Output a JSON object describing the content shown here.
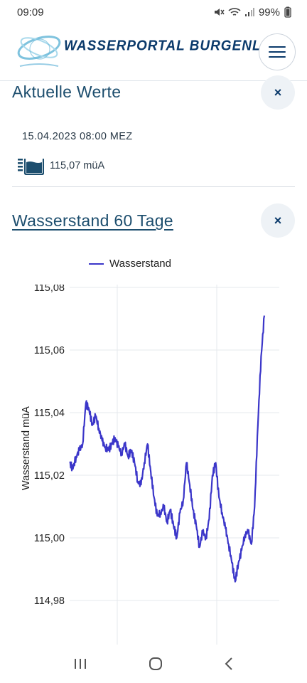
{
  "status_bar": {
    "time": "09:09",
    "battery": "99%"
  },
  "header": {
    "brand": "WASSERPORTAL BURGENLAND"
  },
  "current_values": {
    "title": "Aktuelle Werte",
    "close": "×",
    "timestamp": "15.04.2023 08:00 MEZ",
    "water_level": "115,07 müA"
  },
  "chart_section": {
    "title": "Wasserstand 60 Tage",
    "close": "×"
  },
  "chart_data": {
    "type": "line",
    "title": "",
    "xlabel": "",
    "ylabel": "Wasserstand müA",
    "ylim": [
      114.975,
      115.09
    ],
    "ytick_labels": [
      "115,08",
      "115,06",
      "115,04",
      "115,02",
      "115,00",
      "114,98"
    ],
    "yticks": [
      115.08,
      115.06,
      115.04,
      115.02,
      115.0,
      114.98
    ],
    "grid": true,
    "legend": "top",
    "series": [
      {
        "name": "Wasserstand",
        "color": "#3b36c9",
        "x": [
          0,
          1,
          2,
          3,
          4,
          5,
          6,
          7,
          8,
          9,
          10,
          11,
          12,
          13,
          14,
          15,
          16,
          17,
          18,
          19,
          20,
          21,
          22,
          23,
          24,
          25,
          26,
          27,
          28,
          29,
          30,
          31,
          32,
          33,
          34,
          35,
          36,
          37,
          38,
          39,
          40,
          41,
          42,
          43,
          44,
          45,
          46,
          47,
          48,
          49,
          50,
          51,
          52,
          53,
          54,
          55,
          56,
          57,
          58,
          59,
          60
        ],
        "values": [
          115.024,
          115.022,
          115.026,
          115.028,
          115.03,
          115.043,
          115.041,
          115.036,
          115.039,
          115.035,
          115.031,
          115.029,
          115.028,
          115.03,
          115.032,
          115.029,
          115.027,
          115.03,
          115.026,
          115.028,
          115.024,
          115.018,
          115.017,
          115.024,
          115.03,
          115.021,
          115.013,
          115.007,
          115.008,
          115.01,
          115.005,
          115.009,
          115.004,
          115.0,
          115.008,
          115.012,
          115.024,
          115.017,
          115.009,
          115.004,
          114.997,
          115.002,
          115.0,
          115.006,
          115.02,
          115.024,
          115.013,
          115.008,
          115.003,
          114.998,
          114.992,
          114.986,
          114.992,
          114.996,
          115.001,
          115.002,
          114.998,
          115.01,
          115.036,
          115.058,
          115.071
        ]
      }
    ]
  },
  "nav": {
    "recents": "|||",
    "home": "○",
    "back": "<"
  }
}
